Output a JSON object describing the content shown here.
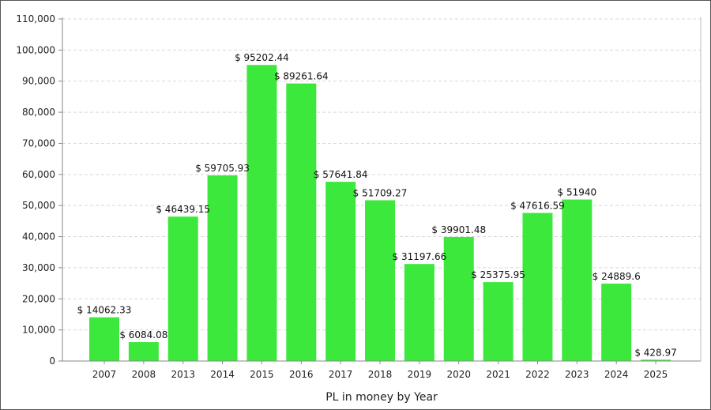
{
  "chart_data": {
    "type": "bar",
    "title": "",
    "xlabel": "PL in money by Year",
    "ylabel": "",
    "ylim": [
      0,
      110000
    ],
    "y_ticks": [
      "0",
      "10,000",
      "20,000",
      "30,000",
      "40,000",
      "50,000",
      "60,000",
      "70,000",
      "80,000",
      "90,000",
      "100,000",
      "110,000"
    ],
    "y_tick_values": [
      0,
      10000,
      20000,
      30000,
      40000,
      50000,
      60000,
      70000,
      80000,
      90000,
      100000,
      110000
    ],
    "grid": true,
    "bar_color": "#3de83d",
    "categories": [
      "2007",
      "2008",
      "2013",
      "2014",
      "2015",
      "2016",
      "2017",
      "2018",
      "2019",
      "2020",
      "2021",
      "2022",
      "2023",
      "2024",
      "2025"
    ],
    "values": [
      14062.33,
      6084.08,
      46439.15,
      59705.93,
      95202.44,
      89261.64,
      57641.84,
      51709.27,
      31197.66,
      39901.48,
      25375.95,
      47616.59,
      51940,
      24889.6,
      428.97
    ],
    "value_labels": [
      "$ 14062.33",
      "$ 6084.08",
      "$ 46439.15",
      "$ 59705.93",
      "$ 95202.44",
      "$ 89261.64",
      "$ 57641.84",
      "$ 51709.27",
      "$ 31197.66",
      "$ 39901.48",
      "$ 25375.95",
      "$ 47616.59",
      "$ 51940",
      "$ 24889.6",
      "$ 428.97"
    ]
  }
}
